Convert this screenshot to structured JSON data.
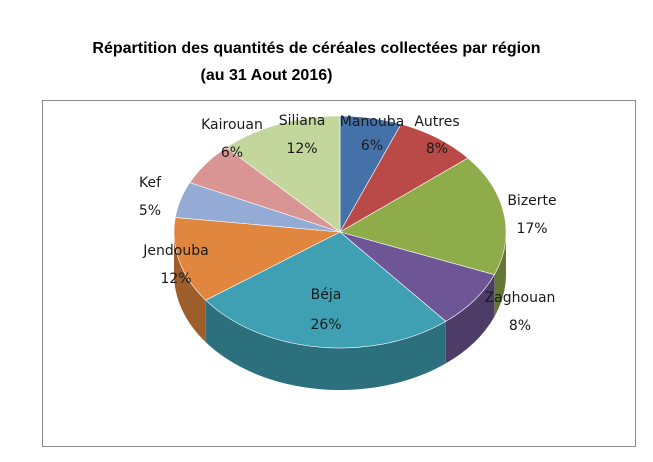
{
  "title": "Répartition des quantités de céréales collectées par région",
  "subtitle": "(au 31 Aout 2016)",
  "chart_data": {
    "type": "pie",
    "title": "Répartition des quantités de céréales collectées par région",
    "subtitle": "(au 31 Aout 2016)",
    "unit": "%",
    "three_d": true,
    "labels_shown": "category name and percentage",
    "slices": [
      {
        "label": "Manouba",
        "value": 6,
        "display": "6%",
        "color": "#4472a8"
      },
      {
        "label": "Autres",
        "value": 8,
        "display": "8%",
        "color": "#b94a48"
      },
      {
        "label": "Bizerte",
        "value": 17,
        "display": "17%",
        "color": "#8eac4a"
      },
      {
        "label": "Zaghouan",
        "value": 8,
        "display": "8%",
        "color": "#6e5595"
      },
      {
        "label": "Béja",
        "value": 26,
        "display": "26%",
        "color": "#3f9fb3"
      },
      {
        "label": "Jendouba",
        "value": 12,
        "display": "12%",
        "color": "#e0863e"
      },
      {
        "label": "Kef",
        "value": 5,
        "display": "5%",
        "color": "#94abd5"
      },
      {
        "label": "Kairouan",
        "value": 6,
        "display": "6%",
        "color": "#d99594"
      },
      {
        "label": "Siliana",
        "value": 12,
        "display": "12%",
        "color": "#c3d69b"
      }
    ]
  }
}
